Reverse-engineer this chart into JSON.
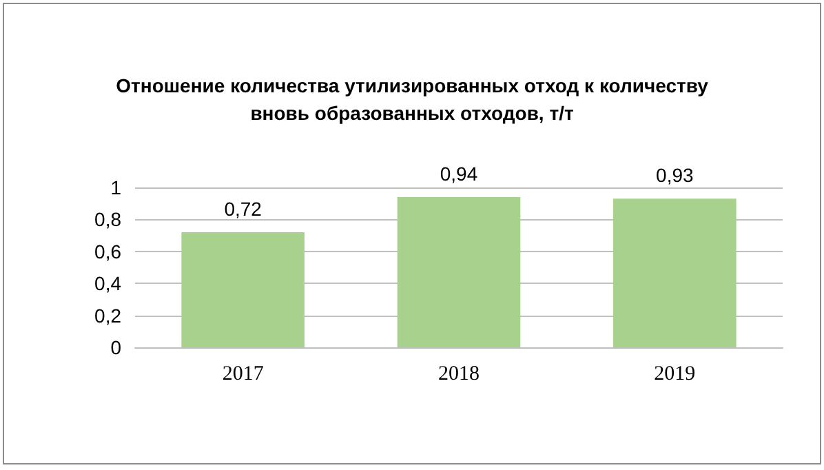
{
  "chart_data": {
    "type": "bar",
    "title": "Отношение количества утилизированных отход к количеству\nвновь образованных отходов, т/т",
    "categories": [
      "2017",
      "2018",
      "2019"
    ],
    "values": [
      0.72,
      0.94,
      0.93
    ],
    "color": "#a9d18e",
    "value_labels": [
      "0,72",
      "0,94",
      "0,93"
    ],
    "ylim": [
      0,
      1
    ],
    "yticks": [
      {
        "value": 0,
        "label": "0"
      },
      {
        "value": 0.2,
        "label": "0,2"
      },
      {
        "value": 0.4,
        "label": "0,4"
      },
      {
        "value": 0.6,
        "label": "0,6"
      },
      {
        "value": 0.8,
        "label": "0,8"
      },
      {
        "value": 1,
        "label": "1"
      }
    ],
    "grid": "y"
  }
}
